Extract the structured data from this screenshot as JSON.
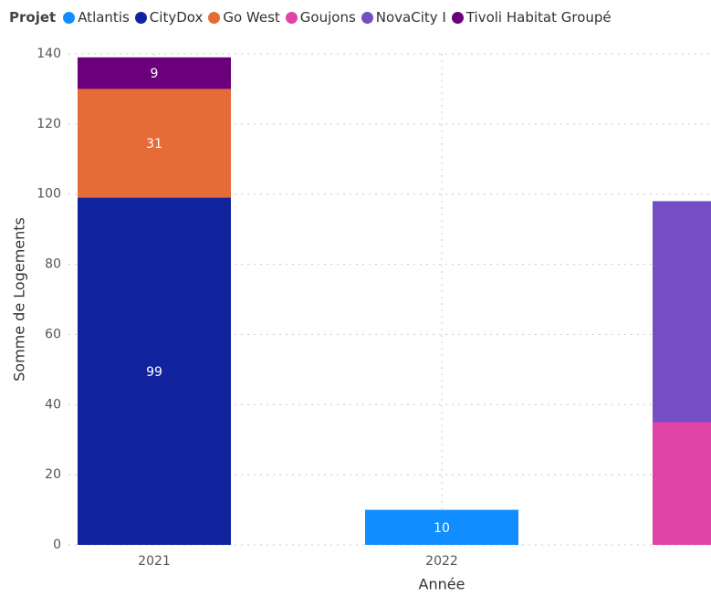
{
  "chart_data": {
    "type": "stacked_bar",
    "legend_title": "Projet",
    "x_label": "Année",
    "y_label": "Somme de Logements",
    "categories": [
      "2021",
      "2022",
      null
    ],
    "series": [
      {
        "name": "Atlantis",
        "color": "#118dff",
        "values": [
          null,
          10,
          null
        ]
      },
      {
        "name": "CityDox",
        "color": "#12239e",
        "values": [
          99,
          null,
          null
        ]
      },
      {
        "name": "Go West",
        "color": "#e66c37",
        "values": [
          31,
          null,
          null
        ]
      },
      {
        "name": "Goujons",
        "color": "#e044a7",
        "values": [
          null,
          null,
          35
        ]
      },
      {
        "name": "NovaCity I",
        "color": "#744ec2",
        "values": [
          null,
          null,
          63
        ]
      },
      {
        "name": "Tivoli Habitat Groupé",
        "color": "#6b007b",
        "values": [
          9,
          null,
          null
        ]
      }
    ],
    "ylim": [
      0,
      140
    ],
    "yticks": [
      0,
      20,
      40,
      60,
      80,
      100,
      120,
      140
    ],
    "grid": true,
    "legend": "top-left"
  }
}
